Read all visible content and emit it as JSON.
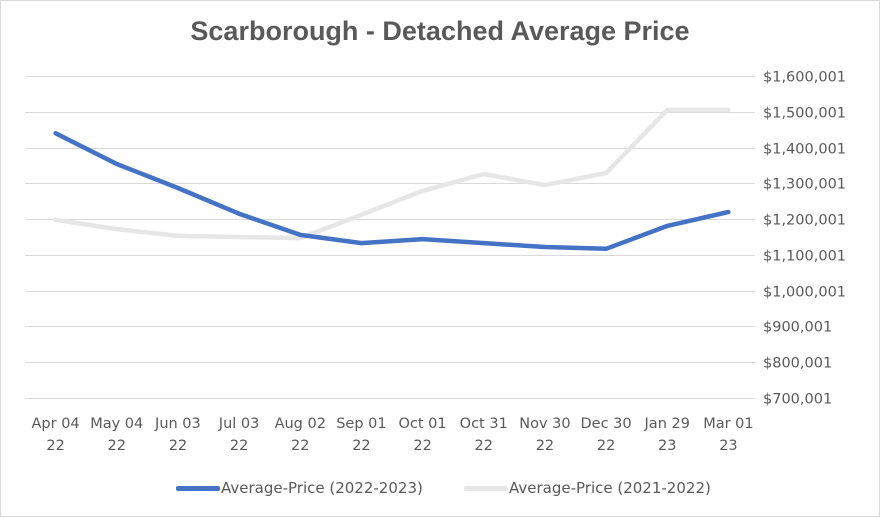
{
  "chart_data": {
    "type": "line",
    "title": "Scarborough - Detached Average Price",
    "xlabel": "",
    "ylabel": "",
    "categories": [
      [
        "Apr 04",
        "22"
      ],
      [
        "May 04",
        "22"
      ],
      [
        "Jun 03",
        "22"
      ],
      [
        "Jul 03",
        "22"
      ],
      [
        "Aug 02",
        "22"
      ],
      [
        "Sep 01",
        "22"
      ],
      [
        "Oct 01",
        "22"
      ],
      [
        "Oct 31",
        "22"
      ],
      [
        "Nov 30",
        "22"
      ],
      [
        "Dec 30",
        "22"
      ],
      [
        "Jan 29",
        "23"
      ],
      [
        "Mar 01",
        "23"
      ]
    ],
    "series": [
      {
        "name": "Average-Price (2022-2023)",
        "color": "#4472c4",
        "values": [
          1440000,
          1354000,
          1287000,
          1215000,
          1156000,
          1133000,
          1144000,
          1133000,
          1122000,
          1117000,
          1181000,
          1220000
        ]
      },
      {
        "name": "Average-Price (2021-2022)",
        "color": "#e7e6e6",
        "values": [
          1198000,
          1172000,
          1153000,
          1150000,
          1147000,
          1212000,
          1279000,
          1326000,
          1295000,
          1329000,
          1505000,
          1505000
        ]
      }
    ],
    "ylim": [
      700001,
      1600001
    ],
    "ytick_step": 100000,
    "ytick_labels": [
      "$700,001",
      "$800,001",
      "$900,001",
      "$1,000,001",
      "$1,100,001",
      "$1,200,001",
      "$1,300,001",
      "$1,400,001",
      "$1,500,001",
      "$1,600,001"
    ],
    "y_axis_side": "right",
    "grid": true,
    "legend_position": "bottom"
  }
}
